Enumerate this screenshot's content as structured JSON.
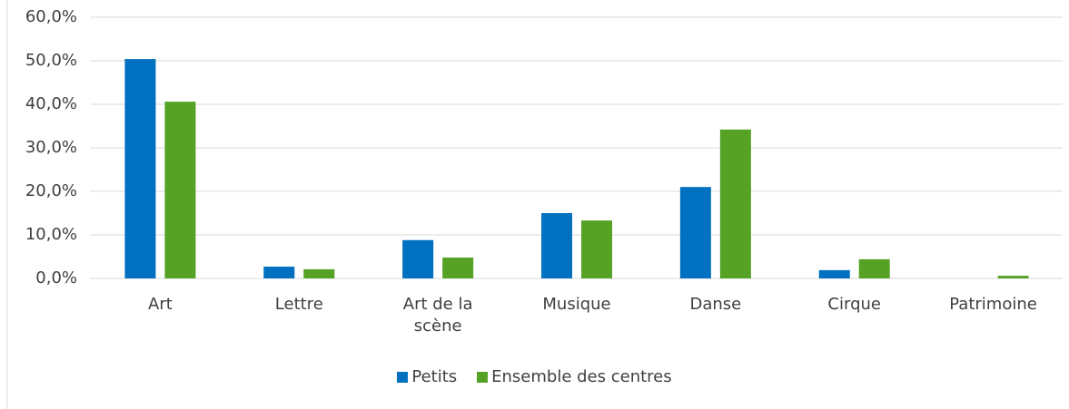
{
  "chart_data": {
    "type": "bar",
    "categories": [
      "Art",
      "Lettre",
      "Art de la scène",
      "Musique",
      "Danse",
      "Cirque",
      "Patrimoine"
    ],
    "series": [
      {
        "name": "Petits",
        "color": "#0070c0",
        "values": [
          50.4,
          2.7,
          8.8,
          15.0,
          21.0,
          1.9,
          0
        ]
      },
      {
        "name": "Ensemble des centres",
        "color": "#56a225",
        "values": [
          40.6,
          2.1,
          4.8,
          13.3,
          34.2,
          4.4,
          0.6
        ]
      }
    ],
    "ylim": [
      0,
      60
    ],
    "yticks": [
      {
        "value": 0,
        "label": "0,0%"
      },
      {
        "value": 10,
        "label": "10,0%"
      },
      {
        "value": 20,
        "label": "20,0%"
      },
      {
        "value": 30,
        "label": "30,0%"
      },
      {
        "value": 40,
        "label": "40,0%"
      },
      {
        "value": 50,
        "label": "50,0%"
      },
      {
        "value": 60,
        "label": "60,0%"
      }
    ],
    "grid": true,
    "legend": "bottom"
  }
}
